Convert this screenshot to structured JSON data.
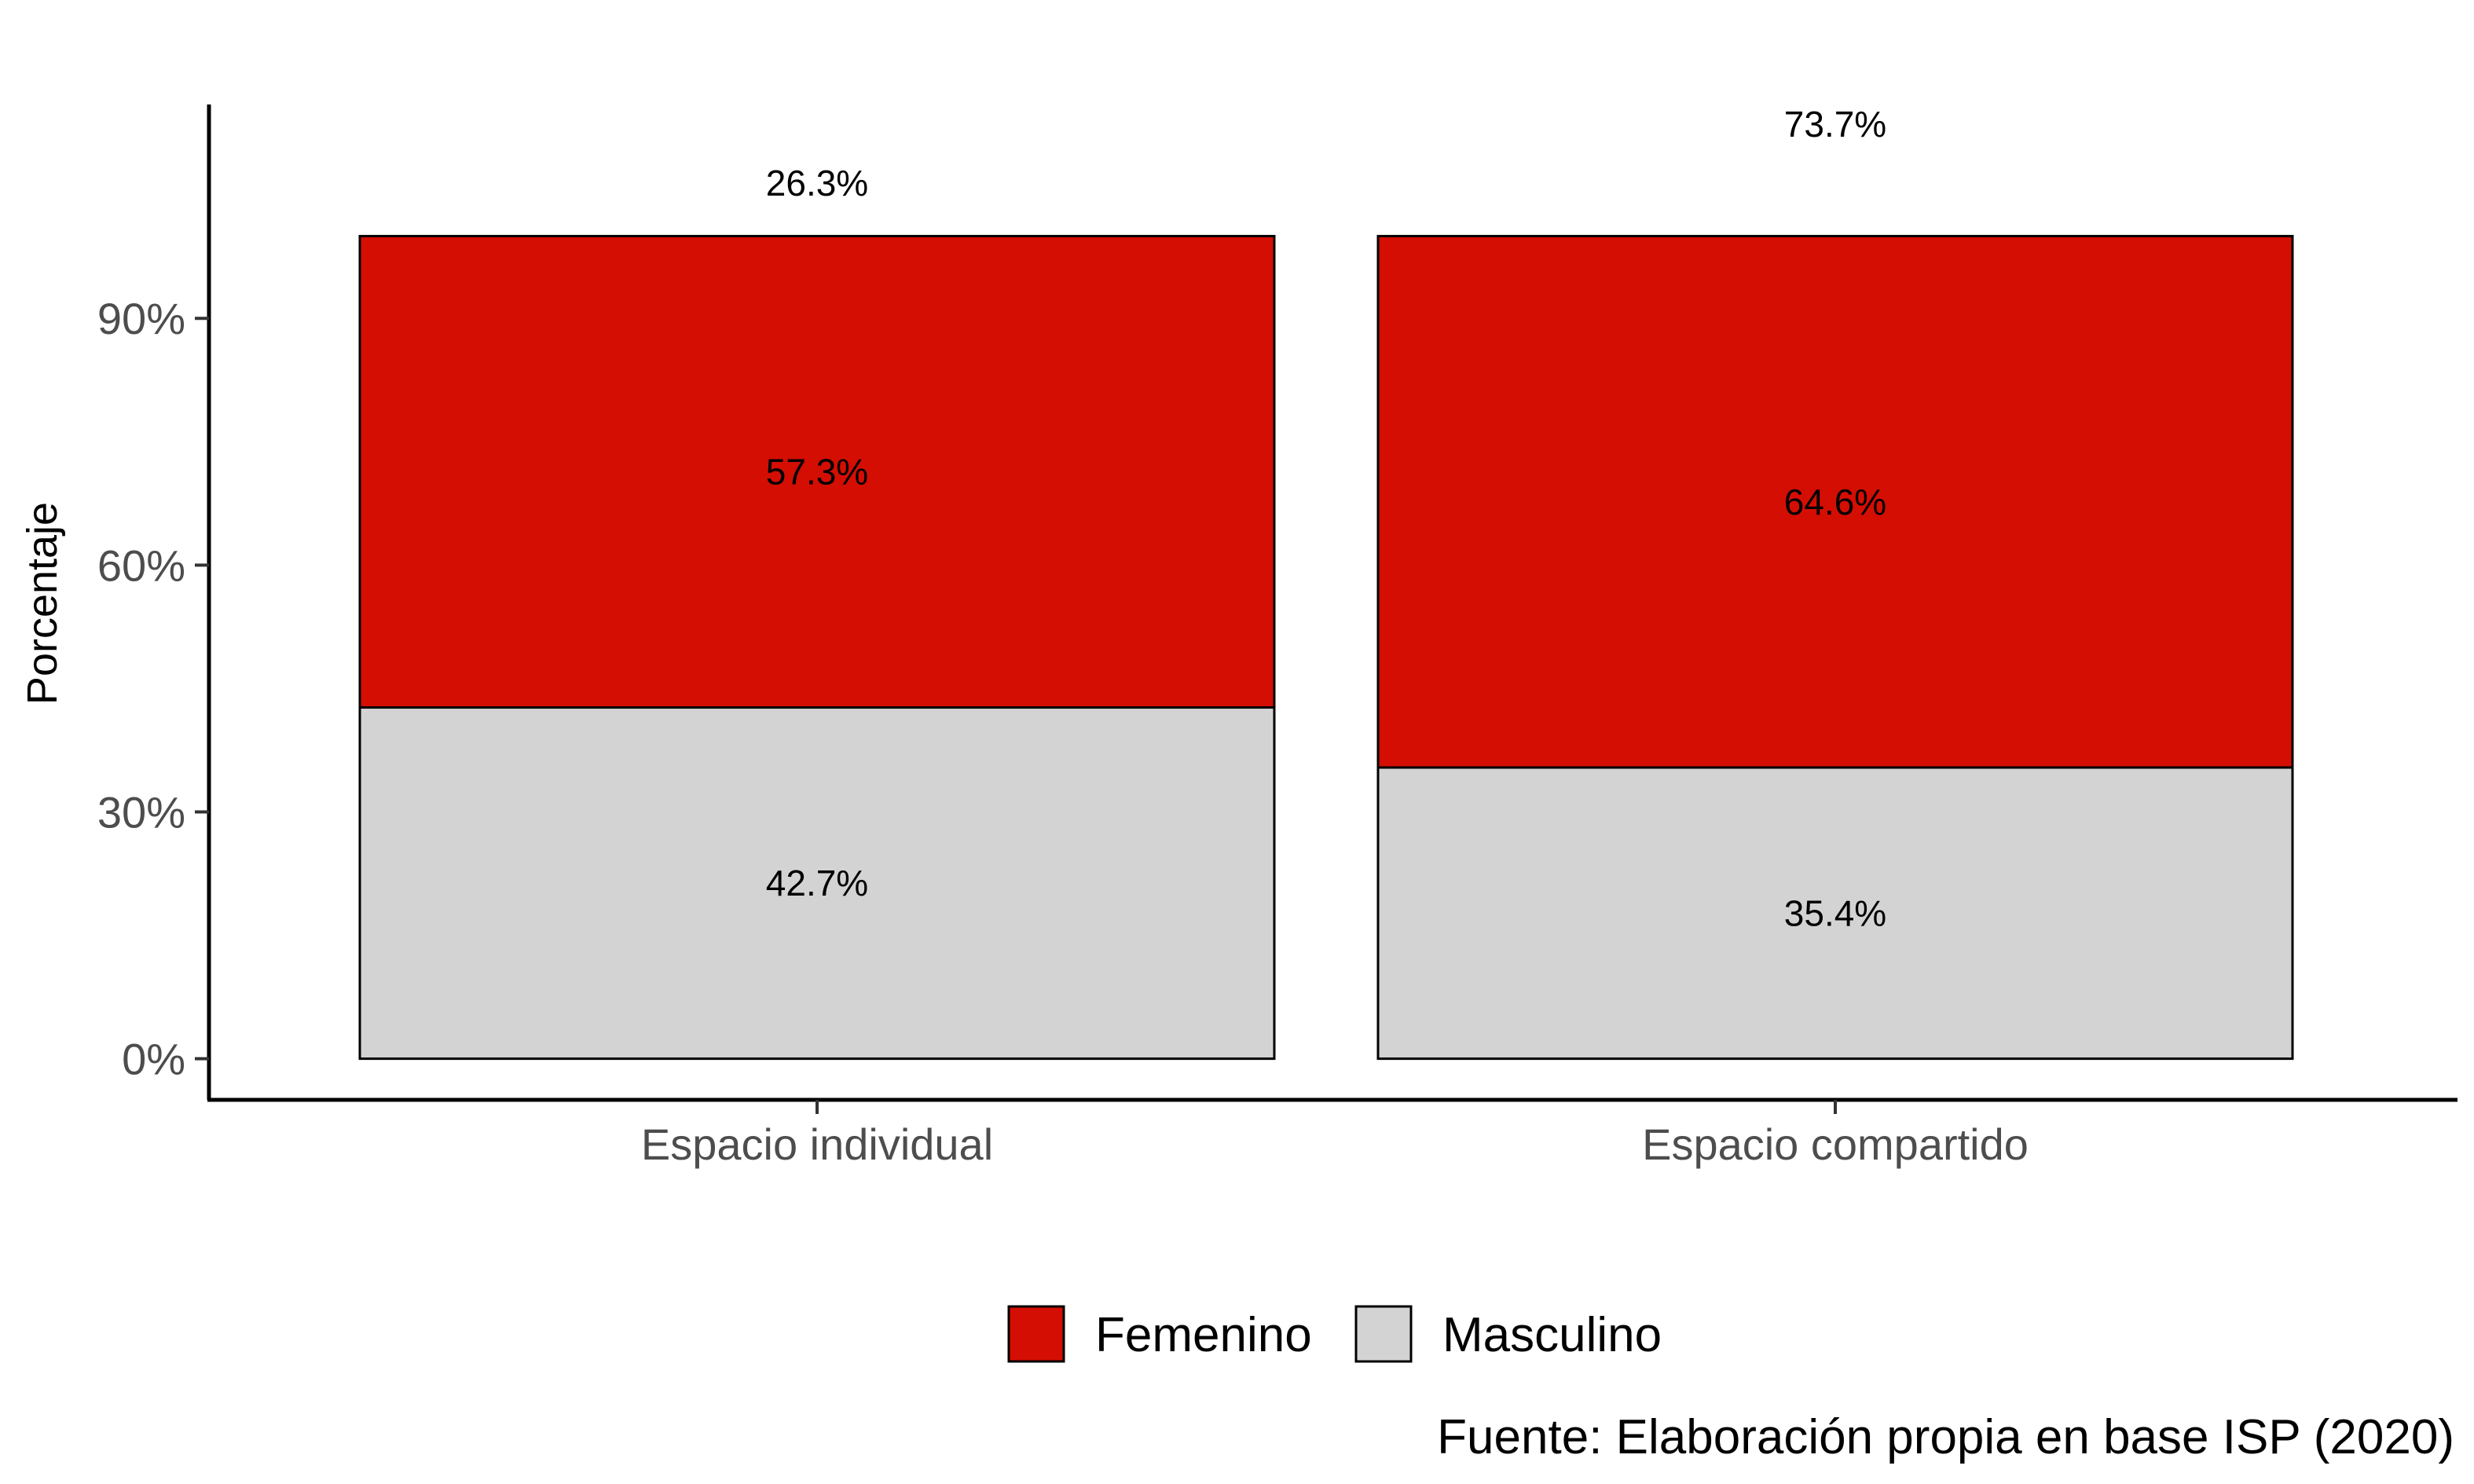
{
  "chart_data": {
    "type": "bar",
    "stacked": true,
    "categories": [
      "Espacio individual",
      "Espacio compartido"
    ],
    "series": [
      {
        "name": "Masculino",
        "values": [
          42.7,
          35.4
        ],
        "labels": [
          "42.7%",
          "35.4%"
        ],
        "color": "#d3d3d3"
      },
      {
        "name": "Femenino",
        "values": [
          57.3,
          64.6
        ],
        "labels": [
          "57.3%",
          "64.6%"
        ],
        "color": "#d40e03"
      }
    ],
    "top_labels": [
      {
        "category": "Espacio individual",
        "text": "26.3%"
      },
      {
        "category": "Espacio compartido",
        "text": "73.7%"
      }
    ],
    "ylabel": "Porcentaje",
    "xlabel": "",
    "yticks": [
      0,
      30,
      60,
      90
    ],
    "ytick_labels": [
      "0%",
      "30%",
      "60%",
      "90%"
    ],
    "ylim": [
      -5,
      116
    ],
    "legend": {
      "position": "bottom",
      "order": [
        "Femenino",
        "Masculino"
      ]
    },
    "grid": false
  },
  "caption": "Fuente: Elaboración propia en base ISP (2020)"
}
